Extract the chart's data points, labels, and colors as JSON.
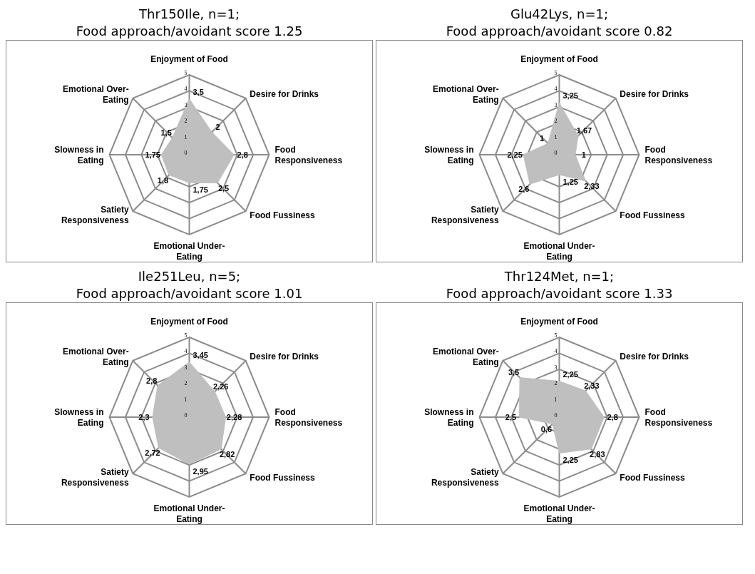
{
  "chart_data": [
    {
      "type": "radar",
      "title": "Thr150Ile, n=1;",
      "subtitle": "Food approach/avoidant score 1.25",
      "categories": [
        "Enjoyment of Food",
        "Desire for Drinks",
        "Food Responsiveness",
        "Food Fussiness",
        "Emotional Under-Eating",
        "Satiety Responsiveness",
        "Slowness in Eating",
        "Emotional Over-Eating"
      ],
      "series": [
        {
          "color": "#bfbfbf",
          "values": [
            3.5,
            2,
            2.8,
            2.5,
            1.75,
            1.8,
            1.75,
            1.5
          ],
          "value_labels": [
            "3,5",
            "2",
            "2,8",
            "2,5",
            "1,75",
            "1,8",
            "1,75",
            "1,5"
          ]
        }
      ],
      "ylim": [
        0,
        5
      ],
      "yticks": [
        0,
        1,
        2,
        3,
        4,
        5
      ],
      "grid": true
    },
    {
      "type": "radar",
      "title": "Glu42Lys, n=1;",
      "subtitle": "Food approach/avoidant score 0.82",
      "categories": [
        "Enjoyment of Food",
        "Desire for Drinks",
        "Food Responsiveness",
        "Food Fussiness",
        "Emotional Under-Eating",
        "Satiety Responsiveness",
        "Slowness in Eating",
        "Emotional Over-Eating"
      ],
      "series": [
        {
          "color": "#bfbfbf",
          "values": [
            3.25,
            1.67,
            1,
            2.33,
            1.25,
            2.6,
            2.25,
            1
          ],
          "value_labels": [
            "3,25",
            "1,67",
            "1",
            "2,33",
            "1,25",
            "2,6",
            "2,25",
            "1"
          ]
        }
      ],
      "ylim": [
        0,
        5
      ],
      "yticks": [
        0,
        1,
        2,
        3,
        4,
        5
      ],
      "grid": true
    },
    {
      "type": "radar",
      "title": "Ile251Leu, n=5;",
      "subtitle": "Food approach/avoidant score 1.01",
      "categories": [
        "Enjoyment of Food",
        "Desire for Drinks",
        "Food Responsiveness",
        "Food Fussiness",
        "Emotional Under-Eating",
        "Satiety Responsiveness",
        "Slowness in Eating",
        "Emotional Over-Eating"
      ],
      "series": [
        {
          "color": "#bfbfbf",
          "values": [
            3.45,
            2.26,
            2.28,
            2.82,
            2.95,
            2.72,
            2.3,
            2.8
          ],
          "value_labels": [
            "3,45",
            "2,26",
            "2,28",
            "2,82",
            "2,95",
            "2,72",
            "2,3",
            "2,8"
          ]
        }
      ],
      "ylim": [
        0,
        5
      ],
      "yticks": [
        0,
        1,
        2,
        3,
        4,
        5
      ],
      "grid": true
    },
    {
      "type": "radar",
      "title": "Thr124Met, n=1;",
      "subtitle": "Food approach/avoidant score 1.33",
      "categories": [
        "Enjoyment of Food",
        "Desire for Drinks",
        "Food Responsiveness",
        "Food Fussiness",
        "Emotional Under-Eating",
        "Satiety Responsiveness",
        "Slowness in Eating",
        "Emotional Over-Eating"
      ],
      "series": [
        {
          "color": "#bfbfbf",
          "values": [
            2.25,
            2.33,
            2.8,
            2.83,
            2.25,
            0.6,
            2.5,
            3.5
          ],
          "value_labels": [
            "2,25",
            "2,33",
            "2,8",
            "2,83",
            "2,25",
            "0,6",
            "2,5",
            "3,5"
          ]
        }
      ],
      "ylim": [
        0,
        5
      ],
      "yticks": [
        0,
        1,
        2,
        3,
        4,
        5
      ],
      "grid": true
    }
  ]
}
